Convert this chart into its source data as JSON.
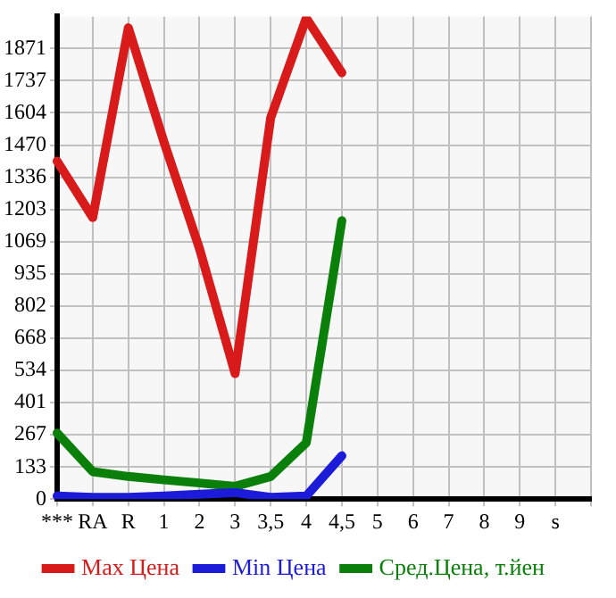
{
  "chart_data": {
    "type": "line",
    "categories": [
      "***",
      "RA",
      "R",
      "1",
      "2",
      "3",
      "3,5",
      "4",
      "4,5",
      "5",
      "6",
      "7",
      "8",
      "9",
      "s",
      null
    ],
    "series": [
      {
        "name": "Max Цена",
        "color": "#d81a1a",
        "values": [
          1403,
          1169,
          1957,
          1483,
          1040,
          521,
          1583,
          1997,
          1770,
          null,
          null,
          null,
          null,
          null,
          null,
          null
        ]
      },
      {
        "name": "Min Цена",
        "color": "#1c1cd8",
        "values": [
          13,
          7,
          7,
          13,
          20,
          27,
          7,
          13,
          180,
          null,
          null,
          null,
          null,
          null,
          null,
          null
        ]
      },
      {
        "name": "Сред.Цена, т.йен",
        "color": "#0a800a",
        "values": [
          274,
          114,
          94,
          80,
          67,
          53,
          94,
          234,
          1156,
          null,
          null,
          null,
          null,
          null,
          null,
          null
        ]
      }
    ],
    "ylim": [
      0,
      2004
    ],
    "yticks": [
      0,
      133,
      267,
      401,
      534,
      668,
      802,
      935,
      1069,
      1203,
      1336,
      1470,
      1604,
      1737,
      1871
    ],
    "grid": true,
    "legend": "bottom",
    "marker": "none",
    "line_style": "solid"
  }
}
